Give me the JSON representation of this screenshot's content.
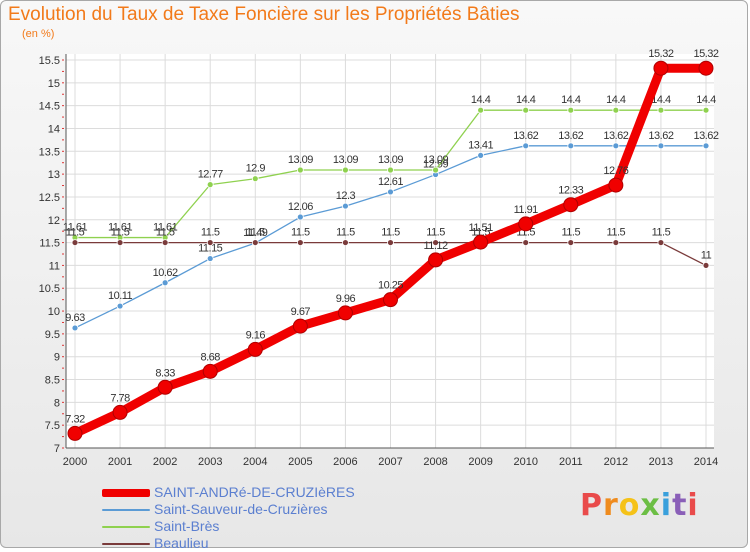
{
  "header": {
    "title": "Evolution du Taux de Taxe Foncière sur les Propriétés Bâties",
    "subtitle": "(en %)"
  },
  "brand": {
    "letters": [
      "P",
      "r",
      "o",
      "x",
      "i",
      "t",
      "i"
    ],
    "colors": [
      "#e94b4b",
      "#ef8b1e",
      "#f5c218",
      "#6cbe45",
      "#3aa0dc",
      "#8a5fb8",
      "#e94b4b"
    ]
  },
  "chart_data": {
    "type": "line",
    "title": "Evolution du Taux de Taxe Foncière sur les Propriétés Bâties",
    "ylabel": "(en %)",
    "x": [
      "2000",
      "2001",
      "2002",
      "2003",
      "2004",
      "2005",
      "2006",
      "2007",
      "2008",
      "2009",
      "2010",
      "2011",
      "2012",
      "2013",
      "2014"
    ],
    "ylim": [
      7,
      15.5
    ],
    "yticks": [
      "7",
      "7.5",
      "8",
      "8.5",
      "9",
      "9.5",
      "10",
      "10.5",
      "11",
      "11.5",
      "12",
      "12.5",
      "13",
      "13.5",
      "14",
      "14.5",
      "15",
      "15.5"
    ],
    "grid": true,
    "legend": "bottom-left",
    "series": [
      {
        "name": "SAINT-ANDRé-DE-CRUZIèRES",
        "color": "#f00000",
        "values": [
          7.32,
          7.78,
          8.33,
          8.68,
          9.16,
          9.67,
          9.96,
          10.25,
          11.12,
          11.51,
          11.91,
          12.33,
          12.76,
          15.32,
          15.32
        ],
        "labels": [
          "7.32",
          "7.78",
          "8.33",
          "8.68",
          "9.16",
          "9.67",
          "9.96",
          "10.25",
          "11.12",
          "11.51",
          "11.91",
          "12.33",
          "12.76",
          "15.32",
          "15.32"
        ]
      },
      {
        "name": "Saint-Sauveur-de-Cruzières",
        "color": "#5b9bd5",
        "values": [
          9.63,
          10.11,
          10.62,
          11.15,
          11.49,
          12.06,
          12.3,
          12.61,
          12.99,
          13.41,
          13.62,
          13.62,
          13.62,
          13.62,
          13.62
        ],
        "labels": [
          "9.63",
          "10.11",
          "10.62",
          "11.15",
          "11.49",
          "12.06",
          "12.3",
          "12.61",
          "12.99",
          "13.41",
          "13.62",
          "13.62",
          "13.62",
          "13.62",
          "13.62"
        ]
      },
      {
        "name": "Saint-Brès",
        "color": "#8fd14f",
        "values": [
          11.61,
          11.61,
          11.61,
          12.77,
          12.9,
          13.09,
          13.09,
          13.09,
          13.09,
          14.4,
          14.4,
          14.4,
          14.4,
          14.4,
          14.4
        ],
        "labels": [
          "11.61",
          "11.61",
          "11.61",
          "12.77",
          "12.9",
          "13.09",
          "13.09",
          "13.09",
          "13.09",
          "14.4",
          "14.4",
          "14.4",
          "14.4",
          "14.4",
          "14.4"
        ]
      },
      {
        "name": "Beaulieu",
        "color": "#7a3b3b",
        "values": [
          11.5,
          11.5,
          11.5,
          11.5,
          11.5,
          11.5,
          11.5,
          11.5,
          11.5,
          11.5,
          11.5,
          11.5,
          11.5,
          11.5,
          11
        ],
        "labels": [
          "11.5",
          "11.5",
          "11.5",
          "11.5",
          "11.5",
          "11.5",
          "11.5",
          "11.5",
          "11.5",
          "11.5",
          "11.5",
          "11.5",
          "11.5",
          "11.5",
          "11"
        ]
      }
    ]
  }
}
